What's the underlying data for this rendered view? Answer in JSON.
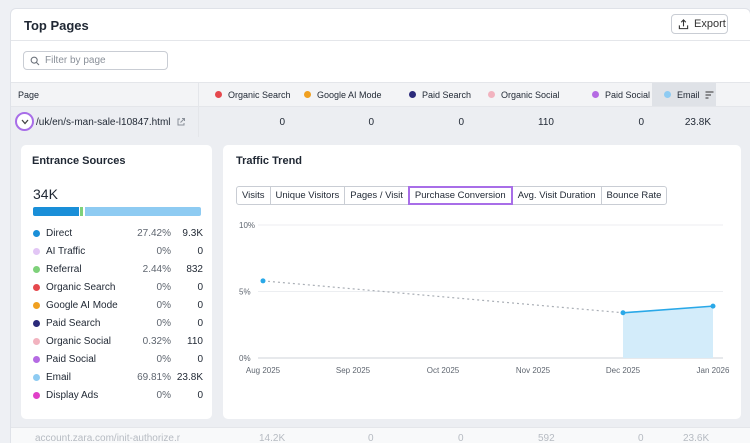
{
  "header": {
    "title": "Top Pages",
    "export_label": "Export"
  },
  "filter": {
    "placeholder": "Filter by page"
  },
  "table": {
    "columns": [
      {
        "label": "Page"
      },
      {
        "label": "Organic Search",
        "color": "#e5484d"
      },
      {
        "label": "Google AI Mode",
        "color": "#f0a020"
      },
      {
        "label": "Paid Search",
        "color": "#2b2a7a"
      },
      {
        "label": "Organic Social",
        "color": "#f2b3bf"
      },
      {
        "label": "Paid Social",
        "color": "#b56be3"
      },
      {
        "label": "Email",
        "color": "#8ecbf2"
      }
    ],
    "row": {
      "page": "/uk/en/s-man-sale-l10847.html",
      "values": [
        "0",
        "0",
        "0",
        "110",
        "0",
        "23.8K"
      ]
    },
    "next_row": {
      "page": "account.zara.com/init-authorize.r",
      "values": [
        "14.2K",
        "0",
        "0",
        "592",
        "0",
        "23.6K"
      ]
    }
  },
  "entrance": {
    "title": "Entrance Sources",
    "total": "34K",
    "sources": [
      {
        "name": "Direct",
        "pct": "27.42%",
        "count": "9.3K",
        "color": "#1a8fd8"
      },
      {
        "name": "AI Traffic",
        "pct": "0%",
        "count": "0",
        "color": "#e2c6f5"
      },
      {
        "name": "Referral",
        "pct": "2.44%",
        "count": "832",
        "color": "#7ed17a"
      },
      {
        "name": "Organic Search",
        "pct": "0%",
        "count": "0",
        "color": "#e5484d"
      },
      {
        "name": "Google AI Mode",
        "pct": "0%",
        "count": "0",
        "color": "#f0a020"
      },
      {
        "name": "Paid Search",
        "pct": "0%",
        "count": "0",
        "color": "#2b2a7a"
      },
      {
        "name": "Organic Social",
        "pct": "0.32%",
        "count": "110",
        "color": "#f2b3bf"
      },
      {
        "name": "Paid Social",
        "pct": "0%",
        "count": "0",
        "color": "#b56be3"
      },
      {
        "name": "Email",
        "pct": "69.81%",
        "count": "23.8K",
        "color": "#8ecbf2"
      },
      {
        "name": "Display Ads",
        "pct": "0%",
        "count": "0",
        "color": "#e040c8"
      }
    ],
    "bar_shares": [
      27.42,
      2.44,
      0.32,
      69.81
    ]
  },
  "trend": {
    "title": "Traffic Trend",
    "tabs": [
      "Visits",
      "Unique Visitors",
      "Pages / Visit",
      "Purchase Conversion",
      "Avg. Visit Duration",
      "Bounce Rate"
    ],
    "active_tab": "Purchase Conversion"
  },
  "chart_data": {
    "type": "line",
    "x": [
      "Aug 2025",
      "Sep 2025",
      "Oct 2025",
      "Nov 2025",
      "Dec 2025",
      "Jan 2026"
    ],
    "series": [
      {
        "values": [
          5.8,
          null,
          null,
          null,
          3.4,
          3.9
        ]
      }
    ],
    "yticks": [
      "0%",
      "5%",
      "10%"
    ],
    "ylim": [
      0,
      10
    ],
    "dotted_gap": true,
    "area_from": "Dec 2025",
    "color": "#29a8e8"
  }
}
